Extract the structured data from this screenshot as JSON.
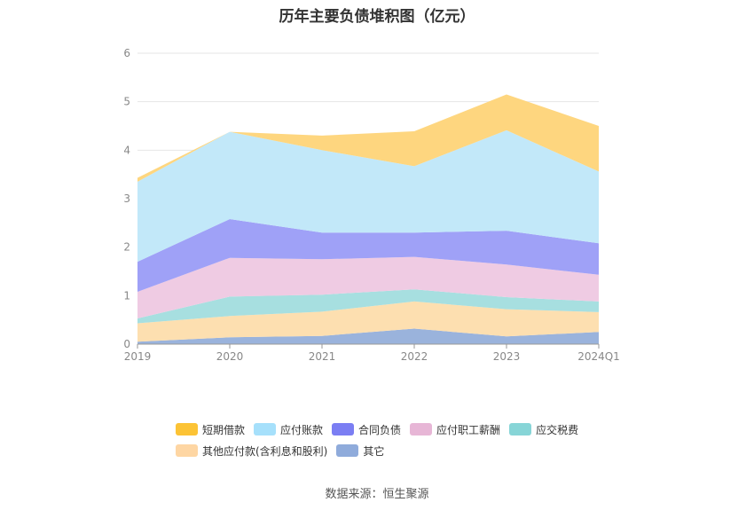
{
  "chart_data": {
    "type": "area",
    "stacked": true,
    "title": "历年主要负债堆积图（亿元）",
    "categories": [
      "2019",
      "2020",
      "2021",
      "2022",
      "2023",
      "2024Q1"
    ],
    "ylim": [
      0,
      6
    ],
    "yticks": [
      0,
      1,
      2,
      3,
      4,
      5,
      6
    ],
    "grid": true,
    "legend_position": "bottom",
    "source": "数据来源：恒生聚源",
    "series": [
      {
        "name": "其它",
        "color": "#9ab3dc",
        "values": [
          0.05,
          0.14,
          0.17,
          0.32,
          0.16,
          0.25
        ]
      },
      {
        "name": "其他应付款(含利息和股利)",
        "color": "#fddfb0",
        "values": [
          0.38,
          0.44,
          0.5,
          0.56,
          0.56,
          0.41
        ]
      },
      {
        "name": "应交税费",
        "color": "#a7dfe0",
        "values": [
          0.1,
          0.4,
          0.35,
          0.25,
          0.25,
          0.22
        ]
      },
      {
        "name": "应付职工薪酬",
        "color": "#efcbe3",
        "values": [
          0.55,
          0.8,
          0.73,
          0.67,
          0.67,
          0.55
        ]
      },
      {
        "name": "合同负债",
        "color": "#9fa1f7",
        "values": [
          0.62,
          0.8,
          0.55,
          0.5,
          0.7,
          0.65
        ]
      },
      {
        "name": "应付账款",
        "color": "#c2e8f9",
        "values": [
          1.65,
          1.8,
          1.7,
          1.37,
          2.07,
          1.48
        ]
      },
      {
        "name": "短期借款",
        "color": "#fed67f",
        "values": [
          0.08,
          0.0,
          0.3,
          0.72,
          0.74,
          0.94
        ]
      }
    ],
    "legend": [
      {
        "name": "短期借款",
        "color": "#fcc335"
      },
      {
        "name": "应付账款",
        "color": "#a6e0fb"
      },
      {
        "name": "合同负债",
        "color": "#7b7ef3"
      },
      {
        "name": "应付职工薪酬",
        "color": "#e7b6d6"
      },
      {
        "name": "应交税费",
        "color": "#87d5d7"
      },
      {
        "name": "其他应付款(含利息和股利)",
        "color": "#fed6a3"
      },
      {
        "name": "其它",
        "color": "#8fabdb"
      }
    ]
  }
}
